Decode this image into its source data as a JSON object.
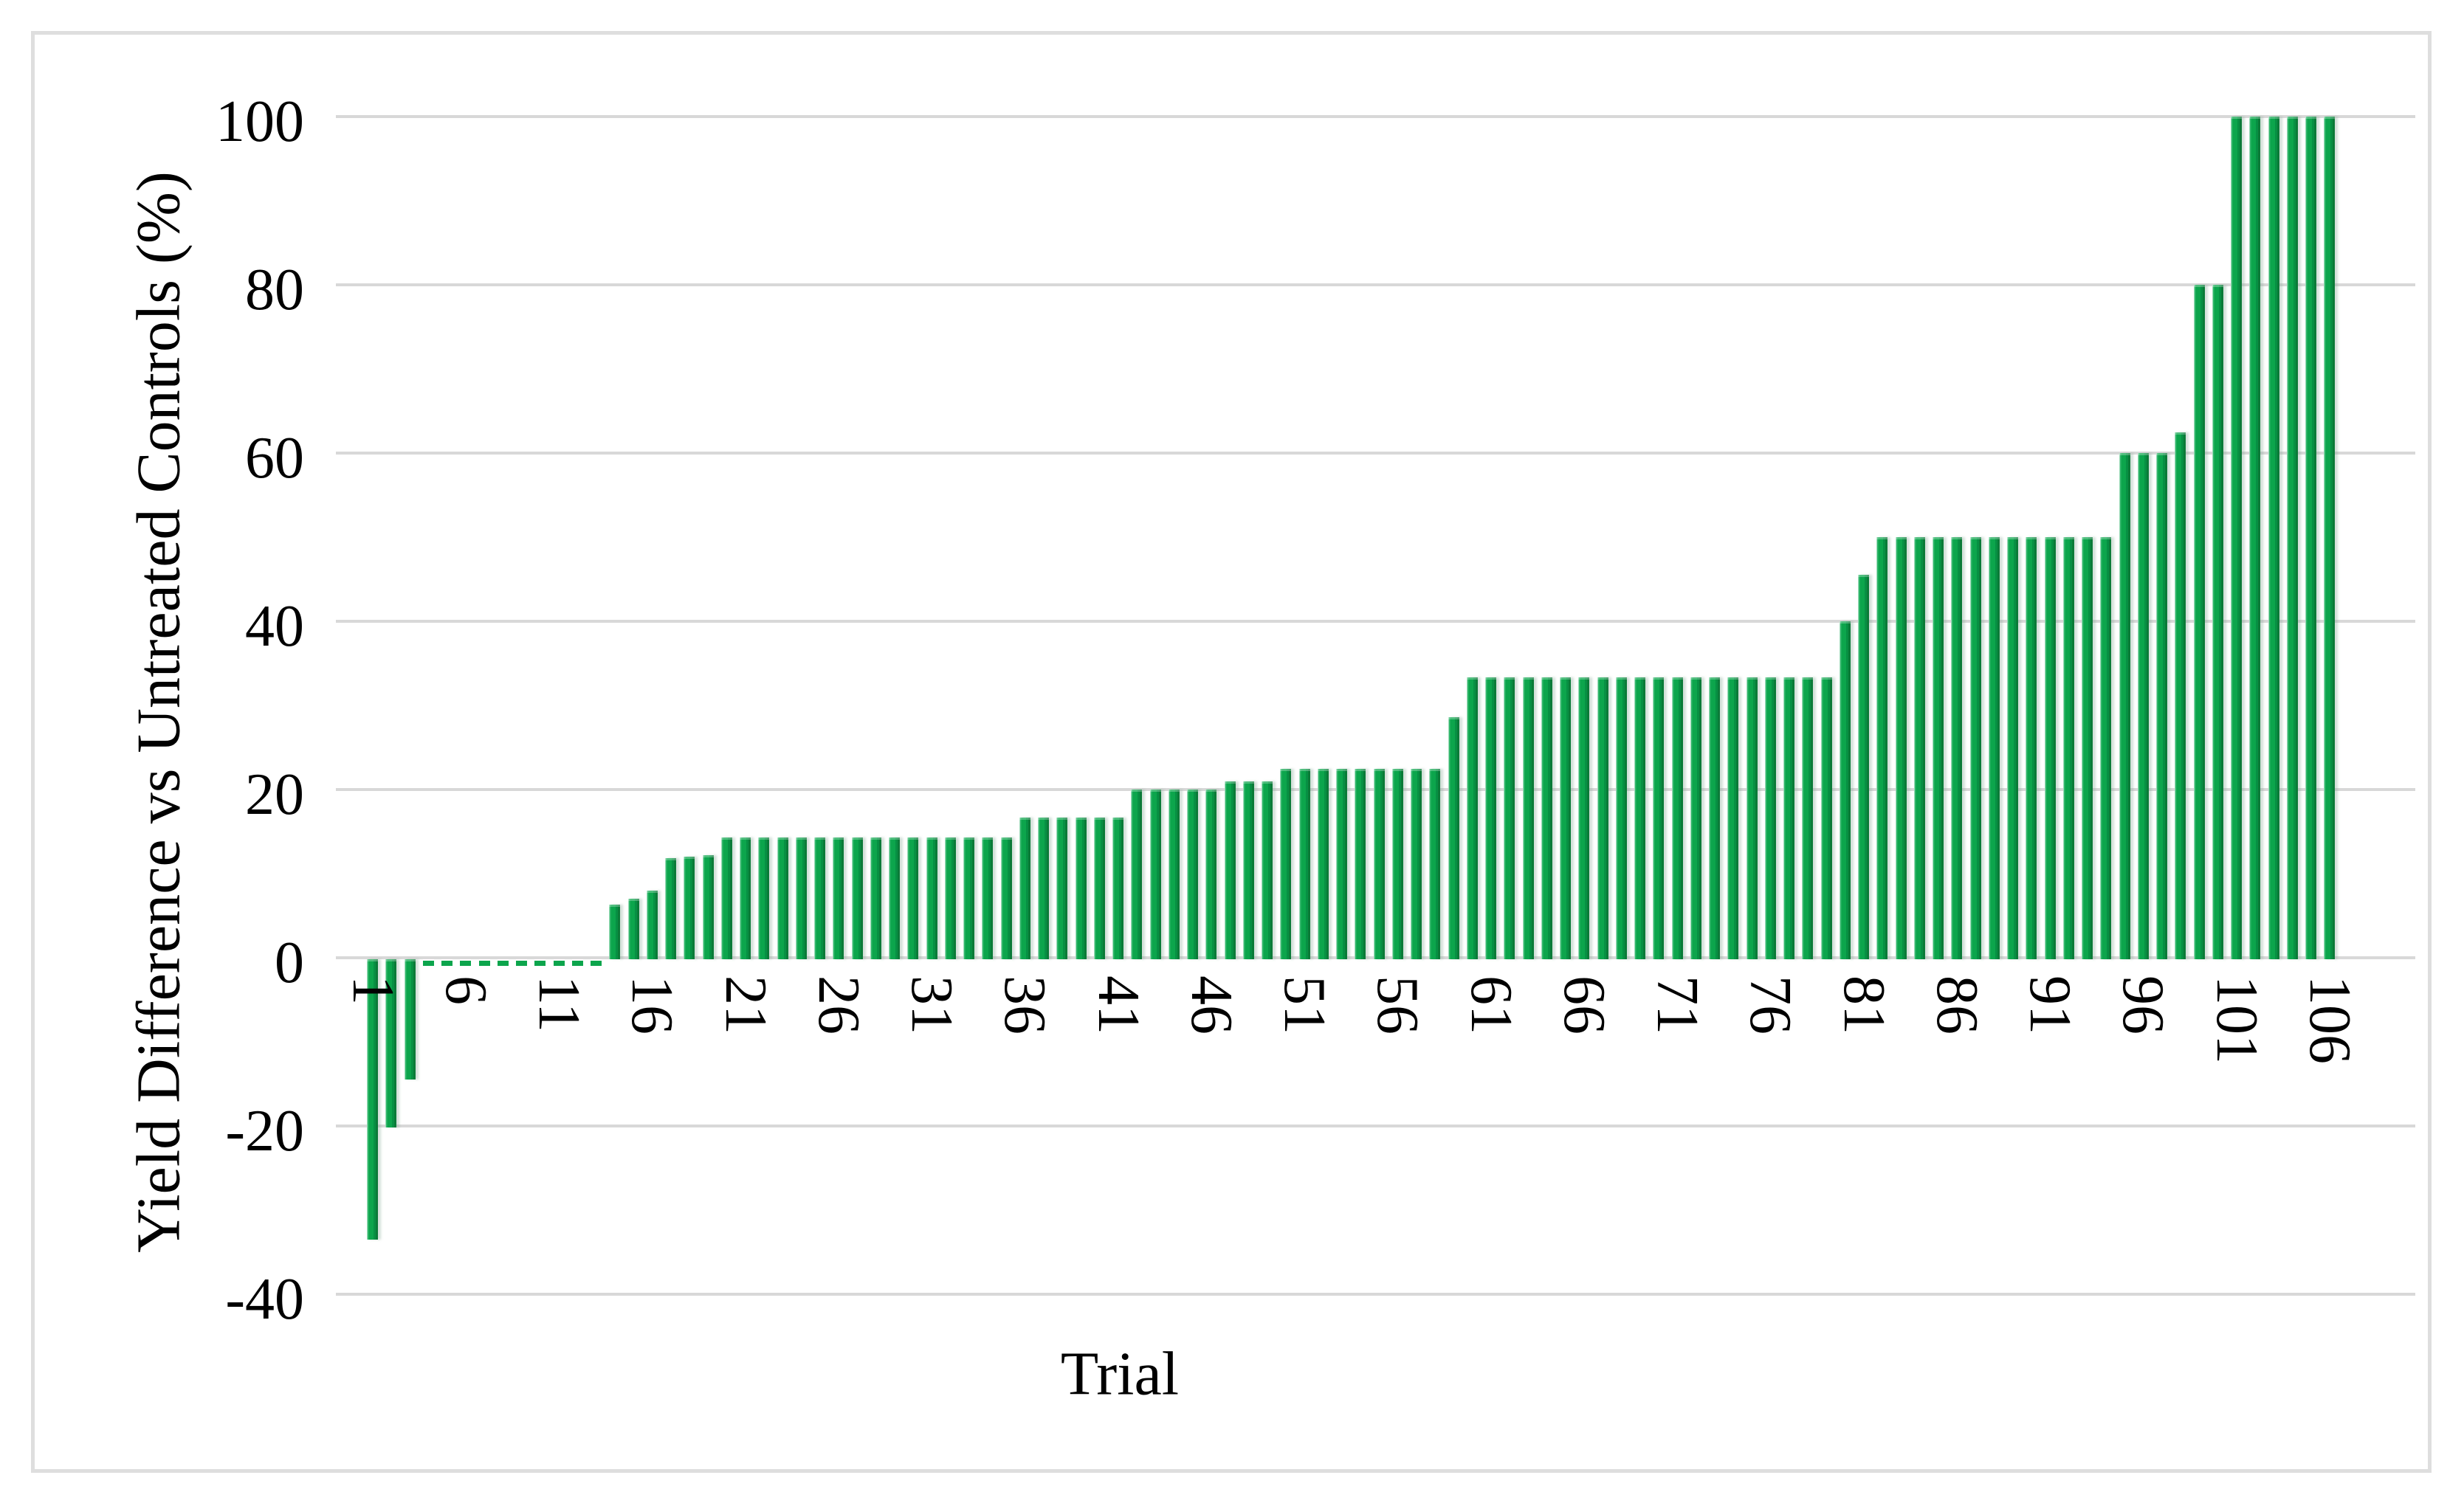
{
  "figure": {
    "y_axis_title": "Yield Difference vs Untreated Controls (%)",
    "x_axis_title": "Trial"
  },
  "chart_data": {
    "type": "bar",
    "title": "",
    "xlabel": "Trial",
    "ylabel": "Yield Difference vs Untreated Controls (%)",
    "ylim": [
      -40,
      100
    ],
    "y_ticks": [
      100,
      80,
      60,
      40,
      20,
      0,
      -20,
      -40
    ],
    "x_tick_labels": [
      "1",
      "6",
      "11",
      "16",
      "21",
      "26",
      "31",
      "36",
      "41",
      "46",
      "51",
      "56",
      "61",
      "66",
      "71",
      "76",
      "81",
      "86",
      "91",
      "96",
      "101",
      "106"
    ],
    "x_tick_step": 5,
    "grid": "horizontal",
    "legend": "none",
    "bar_color": "#0ca54c",
    "gridline_color": "#d8d8d8",
    "n_trials": 106,
    "values": [
      -33.3,
      -20,
      -14.3,
      0,
      0,
      0,
      0,
      0,
      0,
      0,
      0,
      0,
      0,
      6.3,
      7,
      8,
      11.8,
      12,
      12.2,
      14.3,
      14.3,
      14.3,
      14.3,
      14.3,
      14.3,
      14.3,
      14.3,
      14.3,
      14.3,
      14.3,
      14.3,
      14.3,
      14.3,
      14.3,
      14.3,
      16.7,
      16.7,
      16.7,
      16.7,
      16.7,
      16.7,
      20,
      20,
      20,
      20,
      20,
      21,
      21,
      21,
      22.5,
      22.5,
      22.5,
      22.5,
      22.5,
      22.5,
      22.5,
      22.5,
      22.5,
      28.6,
      33.3,
      33.3,
      33.3,
      33.3,
      33.3,
      33.3,
      33.3,
      33.3,
      33.3,
      33.3,
      33.3,
      33.3,
      33.3,
      33.3,
      33.3,
      33.3,
      33.3,
      33.3,
      33.3,
      33.3,
      40,
      45.5,
      50,
      50,
      50,
      50,
      50,
      50,
      50,
      50,
      50,
      50,
      50,
      50,
      50,
      60,
      60,
      60,
      62.5,
      80,
      80,
      100,
      100,
      100,
      100,
      100,
      100
    ]
  }
}
